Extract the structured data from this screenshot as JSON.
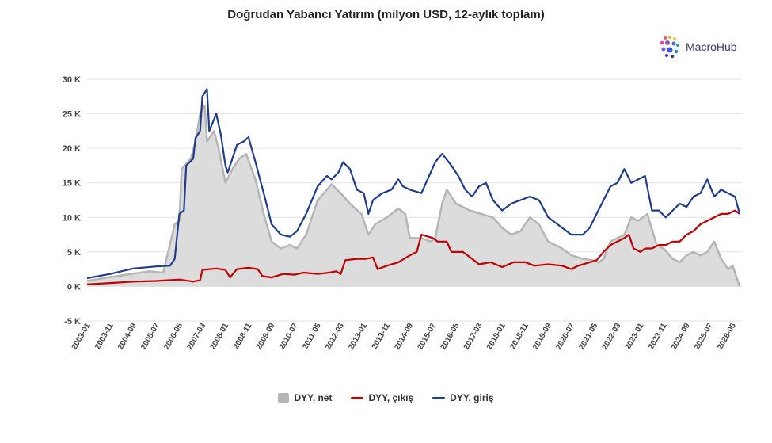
{
  "chart_data": {
    "type": "area",
    "title": "Doğrudan Yabancı Yatırım (milyon USD, 12-aylık toplam)",
    "xlabel": "",
    "ylabel": "",
    "ylim": [
      -5000,
      30000
    ],
    "y_ticks": [
      {
        "value": 30000,
        "label": "30 K"
      },
      {
        "value": 25000,
        "label": "25 K"
      },
      {
        "value": 20000,
        "label": "20 K"
      },
      {
        "value": 15000,
        "label": "15 K"
      },
      {
        "value": 10000,
        "label": "10 K"
      },
      {
        "value": 5000,
        "label": "5 K"
      },
      {
        "value": 0,
        "label": "0 K"
      },
      {
        "value": -5000,
        "label": "-5 K"
      }
    ],
    "x_range": [
      "2003-01",
      "2026-09"
    ],
    "x_tick_labels": [
      "2003-01",
      "2003-11",
      "2004-09",
      "2005-07",
      "2006-05",
      "2007-03",
      "2008-01",
      "2008-11",
      "2009-09",
      "2010-07",
      "2011-05",
      "2012-03",
      "2013-01",
      "2013-11",
      "2014-09",
      "2015-07",
      "2016-05",
      "2017-03",
      "2018-01",
      "2018-11",
      "2019-09",
      "2020-07",
      "2021-05",
      "2022-03",
      "2023-01",
      "2023-11",
      "2024-09",
      "2025-07",
      "2026-05"
    ],
    "grid": true,
    "legend_position": "bottom",
    "series": [
      {
        "name": "DYY, net",
        "kind": "area",
        "color": "#b5b5b5",
        "points": [
          [
            "2003-01",
            800
          ],
          [
            "2003-08",
            1200
          ],
          [
            "2004-06",
            1700
          ],
          [
            "2005-04",
            2200
          ],
          [
            "2005-10",
            2000
          ],
          [
            "2006-03",
            9000
          ],
          [
            "2006-05",
            9500
          ],
          [
            "2006-06",
            17000
          ],
          [
            "2006-10",
            18500
          ],
          [
            "2006-12",
            21000
          ],
          [
            "2007-02",
            25000
          ],
          [
            "2007-04",
            26200
          ],
          [
            "2007-05",
            21000
          ],
          [
            "2007-08",
            22500
          ],
          [
            "2007-10",
            20000
          ],
          [
            "2008-01",
            15000
          ],
          [
            "2008-04",
            17000
          ],
          [
            "2008-07",
            18500
          ],
          [
            "2008-10",
            19200
          ],
          [
            "2009-02",
            15500
          ],
          [
            "2009-06",
            10000
          ],
          [
            "2009-09",
            6500
          ],
          [
            "2010-01",
            5500
          ],
          [
            "2010-05",
            6000
          ],
          [
            "2010-08",
            5500
          ],
          [
            "2010-12",
            7500
          ],
          [
            "2011-05",
            12500
          ],
          [
            "2011-09",
            14000
          ],
          [
            "2011-11",
            14800
          ],
          [
            "2012-03",
            13500
          ],
          [
            "2012-07",
            12000
          ],
          [
            "2012-12",
            10500
          ],
          [
            "2013-03",
            7500
          ],
          [
            "2013-06",
            9000
          ],
          [
            "2013-11",
            10000
          ],
          [
            "2014-04",
            11300
          ],
          [
            "2014-07",
            10500
          ],
          [
            "2014-09",
            7000
          ],
          [
            "2015-02",
            7000
          ],
          [
            "2015-06",
            6500
          ],
          [
            "2015-08",
            7000
          ],
          [
            "2015-11",
            12000
          ],
          [
            "2016-01",
            14000
          ],
          [
            "2016-05",
            12000
          ],
          [
            "2016-11",
            11000
          ],
          [
            "2017-04",
            10500
          ],
          [
            "2017-09",
            10000
          ],
          [
            "2018-01",
            8500
          ],
          [
            "2018-05",
            7500
          ],
          [
            "2018-09",
            8000
          ],
          [
            "2019-01",
            10000
          ],
          [
            "2019-05",
            9000
          ],
          [
            "2019-09",
            6500
          ],
          [
            "2020-03",
            5500
          ],
          [
            "2020-07",
            4500
          ],
          [
            "2020-12",
            4000
          ],
          [
            "2021-04",
            3800
          ],
          [
            "2021-07",
            3500
          ],
          [
            "2021-09",
            4000
          ],
          [
            "2021-12",
            6500
          ],
          [
            "2022-03",
            7000
          ],
          [
            "2022-06",
            7500
          ],
          [
            "2022-09",
            10000
          ],
          [
            "2022-12",
            9500
          ],
          [
            "2023-04",
            10500
          ],
          [
            "2023-08",
            6000
          ],
          [
            "2023-11",
            5500
          ],
          [
            "2024-03",
            4000
          ],
          [
            "2024-06",
            3500
          ],
          [
            "2024-09",
            4500
          ],
          [
            "2024-12",
            5000
          ],
          [
            "2025-03",
            4500
          ],
          [
            "2025-06",
            5000
          ],
          [
            "2025-09",
            6500
          ],
          [
            "2025-12",
            4000
          ],
          [
            "2026-03",
            2500
          ],
          [
            "2026-05",
            3000
          ],
          [
            "2026-07",
            1000
          ],
          [
            "2026-08",
            0
          ]
        ]
      },
      {
        "name": "DYY, çıkış",
        "kind": "line",
        "color": "#c00000",
        "points": [
          [
            "2003-01",
            300
          ],
          [
            "2003-11",
            500
          ],
          [
            "2004-09",
            700
          ],
          [
            "2005-07",
            800
          ],
          [
            "2006-05",
            1000
          ],
          [
            "2006-11",
            700
          ],
          [
            "2007-02",
            900
          ],
          [
            "2007-03",
            2400
          ],
          [
            "2007-09",
            2600
          ],
          [
            "2008-01",
            2400
          ],
          [
            "2008-03",
            1300
          ],
          [
            "2008-06",
            2500
          ],
          [
            "2008-11",
            2700
          ],
          [
            "2009-03",
            2500
          ],
          [
            "2009-05",
            1500
          ],
          [
            "2009-09",
            1300
          ],
          [
            "2010-02",
            1800
          ],
          [
            "2010-07",
            1700
          ],
          [
            "2010-11",
            2000
          ],
          [
            "2011-05",
            1800
          ],
          [
            "2011-10",
            2000
          ],
          [
            "2012-01",
            2200
          ],
          [
            "2012-03",
            1800
          ],
          [
            "2012-05",
            3800
          ],
          [
            "2012-10",
            4000
          ],
          [
            "2013-02",
            4000
          ],
          [
            "2013-05",
            4200
          ],
          [
            "2013-07",
            2500
          ],
          [
            "2013-11",
            3000
          ],
          [
            "2014-04",
            3500
          ],
          [
            "2014-09",
            4500
          ],
          [
            "2014-12",
            5000
          ],
          [
            "2015-02",
            7500
          ],
          [
            "2015-07",
            7000
          ],
          [
            "2015-09",
            6500
          ],
          [
            "2016-01",
            6500
          ],
          [
            "2016-03",
            5000
          ],
          [
            "2016-08",
            5000
          ],
          [
            "2016-12",
            4000
          ],
          [
            "2017-03",
            3200
          ],
          [
            "2017-08",
            3500
          ],
          [
            "2018-01",
            2800
          ],
          [
            "2018-06",
            3500
          ],
          [
            "2018-11",
            3500
          ],
          [
            "2019-03",
            3000
          ],
          [
            "2019-09",
            3200
          ],
          [
            "2020-03",
            3000
          ],
          [
            "2020-07",
            2500
          ],
          [
            "2020-10",
            3000
          ],
          [
            "2021-03",
            3500
          ],
          [
            "2021-06",
            3800
          ],
          [
            "2021-09",
            5000
          ],
          [
            "2021-12",
            6000
          ],
          [
            "2022-03",
            6500
          ],
          [
            "2022-06",
            7000
          ],
          [
            "2022-08",
            7500
          ],
          [
            "2022-10",
            5500
          ],
          [
            "2023-01",
            5000
          ],
          [
            "2023-03",
            5500
          ],
          [
            "2023-06",
            5500
          ],
          [
            "2023-09",
            6000
          ],
          [
            "2023-12",
            6000
          ],
          [
            "2024-03",
            6500
          ],
          [
            "2024-06",
            6500
          ],
          [
            "2024-09",
            7500
          ],
          [
            "2024-12",
            8000
          ],
          [
            "2025-03",
            9000
          ],
          [
            "2025-06",
            9500
          ],
          [
            "2025-09",
            10000
          ],
          [
            "2025-12",
            10500
          ],
          [
            "2026-03",
            10500
          ],
          [
            "2026-06",
            11000
          ],
          [
            "2026-08",
            10500
          ]
        ]
      },
      {
        "name": "DYY, giriş",
        "kind": "line",
        "color": "#1f3d8c",
        "points": [
          [
            "2003-01",
            1200
          ],
          [
            "2003-11",
            1800
          ],
          [
            "2004-09",
            2600
          ],
          [
            "2005-07",
            2900
          ],
          [
            "2006-01",
            3000
          ],
          [
            "2006-03",
            4000
          ],
          [
            "2006-05",
            10500
          ],
          [
            "2006-07",
            11000
          ],
          [
            "2006-08",
            17500
          ],
          [
            "2006-11",
            18500
          ],
          [
            "2006-12",
            21500
          ],
          [
            "2007-02",
            22500
          ],
          [
            "2007-03",
            27500
          ],
          [
            "2007-05",
            28600
          ],
          [
            "2007-06",
            22500
          ],
          [
            "2007-09",
            25000
          ],
          [
            "2007-11",
            22000
          ],
          [
            "2008-01",
            17500
          ],
          [
            "2008-02",
            16500
          ],
          [
            "2008-06",
            20500
          ],
          [
            "2008-09",
            21000
          ],
          [
            "2008-11",
            21600
          ],
          [
            "2009-02",
            18000
          ],
          [
            "2009-06",
            13000
          ],
          [
            "2009-09",
            9000
          ],
          [
            "2010-01",
            7500
          ],
          [
            "2010-05",
            7200
          ],
          [
            "2010-08",
            8000
          ],
          [
            "2010-12",
            10500
          ],
          [
            "2011-05",
            14500
          ],
          [
            "2011-09",
            16000
          ],
          [
            "2011-11",
            15500
          ],
          [
            "2012-02",
            16500
          ],
          [
            "2012-04",
            18000
          ],
          [
            "2012-07",
            17000
          ],
          [
            "2012-10",
            14000
          ],
          [
            "2013-01",
            13500
          ],
          [
            "2013-03",
            10500
          ],
          [
            "2013-05",
            12500
          ],
          [
            "2013-09",
            13500
          ],
          [
            "2014-01",
            14000
          ],
          [
            "2014-04",
            15500
          ],
          [
            "2014-06",
            14500
          ],
          [
            "2014-09",
            14000
          ],
          [
            "2015-02",
            13500
          ],
          [
            "2015-06",
            16500
          ],
          [
            "2015-08",
            18000
          ],
          [
            "2015-11",
            19200
          ],
          [
            "2016-03",
            17500
          ],
          [
            "2016-06",
            16000
          ],
          [
            "2016-09",
            14000
          ],
          [
            "2016-12",
            13000
          ],
          [
            "2017-03",
            14500
          ],
          [
            "2017-06",
            15000
          ],
          [
            "2017-09",
            12500
          ],
          [
            "2018-01",
            11000
          ],
          [
            "2018-05",
            12000
          ],
          [
            "2018-09",
            12500
          ],
          [
            "2019-01",
            13000
          ],
          [
            "2019-05",
            12500
          ],
          [
            "2019-09",
            10000
          ],
          [
            "2020-03",
            8500
          ],
          [
            "2020-07",
            7500
          ],
          [
            "2020-12",
            7500
          ],
          [
            "2021-03",
            8500
          ],
          [
            "2021-06",
            10500
          ],
          [
            "2021-09",
            12500
          ],
          [
            "2021-12",
            14500
          ],
          [
            "2022-03",
            15000
          ],
          [
            "2022-06",
            17000
          ],
          [
            "2022-09",
            15000
          ],
          [
            "2022-12",
            15500
          ],
          [
            "2023-03",
            16000
          ],
          [
            "2023-06",
            11000
          ],
          [
            "2023-09",
            11000
          ],
          [
            "2023-12",
            10000
          ],
          [
            "2024-03",
            11000
          ],
          [
            "2024-06",
            12000
          ],
          [
            "2024-09",
            11500
          ],
          [
            "2024-12",
            13000
          ],
          [
            "2025-03",
            13500
          ],
          [
            "2025-06",
            15500
          ],
          [
            "2025-09",
            13000
          ],
          [
            "2025-12",
            14000
          ],
          [
            "2026-03",
            13500
          ],
          [
            "2026-06",
            13000
          ],
          [
            "2026-08",
            10500
          ]
        ]
      }
    ]
  },
  "logo": {
    "text": "MacroHub"
  }
}
